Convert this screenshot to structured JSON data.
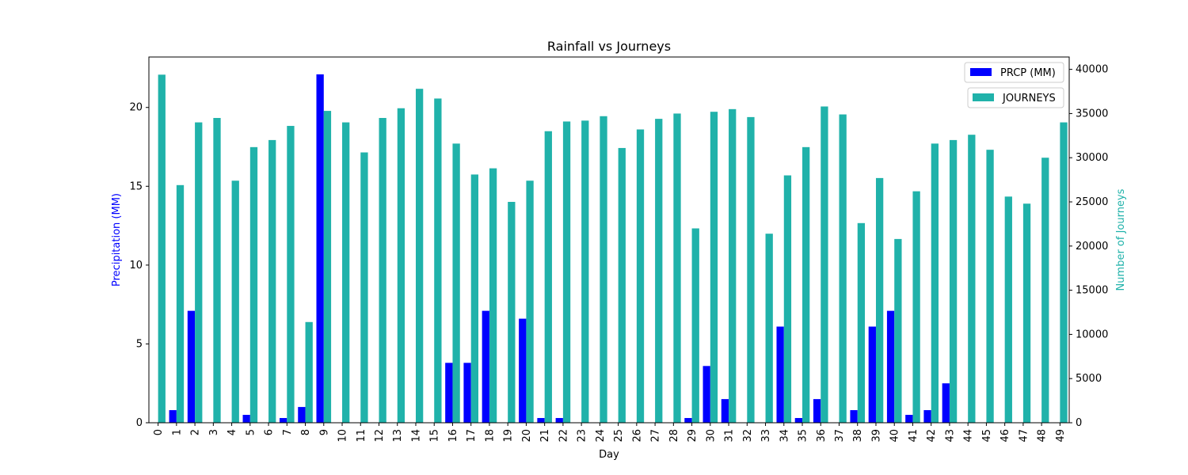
{
  "chart_data": {
    "type": "bar",
    "title": "Rainfall vs Journeys",
    "xlabel": "Day",
    "ylabel_left": "Precipitation (MM)",
    "ylabel_right": "Number of Journeys",
    "categories": [
      "0",
      "1",
      "2",
      "3",
      "4",
      "5",
      "6",
      "7",
      "8",
      "9",
      "10",
      "11",
      "12",
      "13",
      "14",
      "15",
      "16",
      "17",
      "18",
      "19",
      "20",
      "21",
      "22",
      "23",
      "24",
      "25",
      "26",
      "27",
      "28",
      "29",
      "30",
      "31",
      "32",
      "33",
      "34",
      "35",
      "36",
      "37",
      "38",
      "39",
      "40",
      "41",
      "42",
      "43",
      "44",
      "45",
      "46",
      "47",
      "48",
      "49"
    ],
    "ylim_left": [
      0,
      23.2
    ],
    "ylim_right": [
      0,
      41400
    ],
    "yticks_left": [
      0,
      5,
      10,
      15,
      20
    ],
    "yticks_right": [
      0,
      5000,
      10000,
      15000,
      20000,
      25000,
      30000,
      35000,
      40000
    ],
    "series": [
      {
        "name": "PRCP (MM)",
        "axis": "left",
        "color": "#0000ff",
        "values": [
          0,
          0.8,
          7.1,
          0,
          0,
          0.5,
          0,
          0.3,
          1.0,
          22.1,
          0,
          0,
          0,
          0,
          0,
          0,
          3.8,
          3.8,
          7.1,
          0,
          6.6,
          0.3,
          0.3,
          0,
          0,
          0,
          0,
          0,
          0,
          0.3,
          3.6,
          1.5,
          0,
          0,
          6.1,
          0.3,
          1.5,
          0,
          0.8,
          6.1,
          7.1,
          0.5,
          0.8,
          2.5,
          0,
          0,
          0,
          0,
          0,
          0
        ]
      },
      {
        "name": "JOURNEYS",
        "axis": "right",
        "color": "#20b2aa",
        "values": [
          39400,
          26900,
          34000,
          34500,
          27400,
          31200,
          32000,
          33600,
          11400,
          35300,
          34000,
          30600,
          34500,
          35600,
          37800,
          36700,
          31600,
          28100,
          28800,
          25000,
          27400,
          33000,
          34100,
          34200,
          34700,
          31100,
          33200,
          34400,
          35000,
          22000,
          35200,
          35500,
          34600,
          21400,
          28000,
          31200,
          35800,
          34900,
          22600,
          27700,
          20800,
          26200,
          31600,
          32000,
          32600,
          30900,
          25600,
          24800,
          30000,
          34000
        ]
      }
    ],
    "legend_left": "top-right",
    "legend_right": "top-right",
    "grid": false
  }
}
